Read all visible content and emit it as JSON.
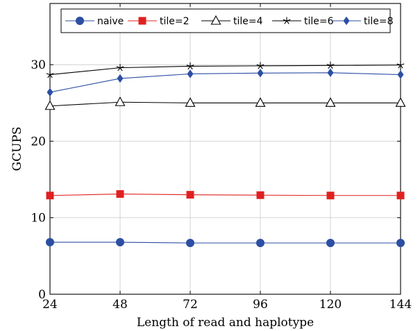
{
  "chart_data": {
    "type": "line",
    "title": "",
    "xlabel": "Length of read and haplotype",
    "ylabel": "GCUPS",
    "x": [
      24,
      48,
      72,
      96,
      120,
      144
    ],
    "xlim": [
      24,
      144
    ],
    "ylim": [
      0,
      38
    ],
    "xticks": [
      24,
      48,
      72,
      96,
      120,
      144
    ],
    "yticks": [
      0,
      10,
      20,
      30
    ],
    "grid": true,
    "legend_position": "top",
    "series": [
      {
        "name": "naive",
        "color": "#2c4fa3",
        "marker": "filled-circle",
        "values": [
          6.8,
          6.8,
          6.7,
          6.7,
          6.7,
          6.7
        ]
      },
      {
        "name": "tile=2",
        "color": "#e02020",
        "marker": "filled-square",
        "values": [
          12.9,
          13.1,
          13.0,
          12.95,
          12.9,
          12.9
        ]
      },
      {
        "name": "tile=4",
        "color": "#000000",
        "marker": "open-triangle",
        "values": [
          24.6,
          25.1,
          25.0,
          25.0,
          25.0,
          25.0
        ]
      },
      {
        "name": "tile=6",
        "color": "#000000",
        "marker": "star",
        "values": [
          28.7,
          29.6,
          29.8,
          29.85,
          29.9,
          29.95
        ]
      },
      {
        "name": "tile=8",
        "color": "#2c4fa3",
        "marker": "filled-diamond",
        "values": [
          26.4,
          28.2,
          28.8,
          28.9,
          28.95,
          28.7
        ]
      }
    ]
  }
}
